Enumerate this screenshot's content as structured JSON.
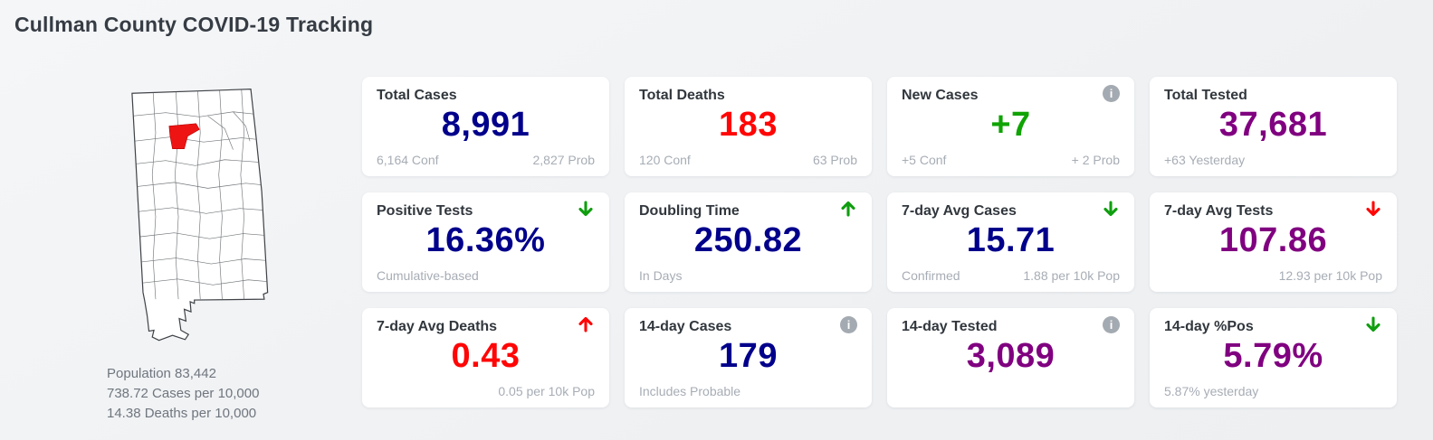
{
  "page": {
    "title": "Cullman County COVID-19 Tracking"
  },
  "map": {
    "region": "Alabama counties, Cullman County highlighted",
    "highlight_color": "#ee1414",
    "stats": [
      "Population 83,442",
      "738.72 Cases per 10,000",
      "14.38 Deaths per 10,000"
    ]
  },
  "icons": {
    "info": "i",
    "arrow_up": "arrow-up-icon",
    "arrow_down": "arrow-down-icon"
  },
  "colors": {
    "green": "#0f9e0f",
    "red": "#ff0606",
    "blue": "#00008b",
    "purple": "#800080"
  },
  "cards": [
    {
      "label": "Total Cases",
      "value": "8,991",
      "value_color": "#00008b",
      "icon": "none",
      "icon_color": "",
      "footer_left": "6,164 Conf",
      "footer_right": "2,827 Prob"
    },
    {
      "label": "Total Deaths",
      "value": "183",
      "value_color": "#ff0606",
      "icon": "none",
      "icon_color": "",
      "footer_left": "120 Conf",
      "footer_right": "63 Prob"
    },
    {
      "label": "New Cases",
      "value": "+7",
      "value_color": "#0fa303",
      "icon": "info",
      "icon_color": "",
      "footer_left": "+5 Conf",
      "footer_right": "+ 2 Prob"
    },
    {
      "label": "Total Tested",
      "value": "37,681",
      "value_color": "#800080",
      "icon": "none",
      "icon_color": "",
      "footer_left": "+63 Yesterday",
      "footer_right": ""
    },
    {
      "label": "Positive Tests",
      "value": "16.36%",
      "value_color": "#00008b",
      "icon": "arrow-down",
      "icon_color": "green",
      "footer_left": "Cumulative-based",
      "footer_right": ""
    },
    {
      "label": "Doubling Time",
      "value": "250.82",
      "value_color": "#00008b",
      "icon": "arrow-up",
      "icon_color": "green",
      "footer_left": "In Days",
      "footer_right": ""
    },
    {
      "label": "7-day Avg Cases",
      "value": "15.71",
      "value_color": "#00008b",
      "icon": "arrow-down",
      "icon_color": "green",
      "footer_left": "Confirmed",
      "footer_right": "1.88 per 10k Pop"
    },
    {
      "label": "7-day Avg Tests",
      "value": "107.86",
      "value_color": "#800080",
      "icon": "arrow-down",
      "icon_color": "red",
      "footer_left": "",
      "footer_right": "12.93 per 10k Pop"
    },
    {
      "label": "7-day Avg Deaths",
      "value": "0.43",
      "value_color": "#ff0606",
      "icon": "arrow-up",
      "icon_color": "red",
      "footer_left": "",
      "footer_right": "0.05 per 10k Pop"
    },
    {
      "label": "14-day Cases",
      "value": "179",
      "value_color": "#00008b",
      "icon": "info",
      "icon_color": "",
      "footer_left": "Includes Probable",
      "footer_right": ""
    },
    {
      "label": "14-day Tested",
      "value": "3,089",
      "value_color": "#800080",
      "icon": "info",
      "icon_color": "",
      "footer_left": "",
      "footer_right": ""
    },
    {
      "label": "14-day %Pos",
      "value": "5.79%",
      "value_color": "#800080",
      "icon": "arrow-down",
      "icon_color": "green",
      "footer_left": "5.87% yesterday",
      "footer_right": ""
    }
  ]
}
